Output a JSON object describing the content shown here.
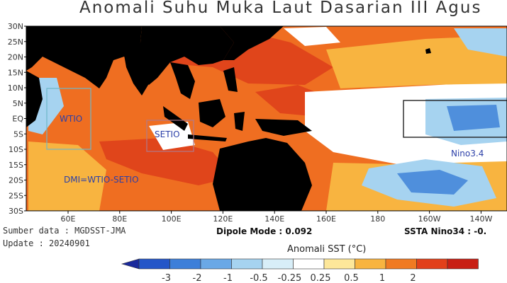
{
  "title": "Anomali Suhu Muka Laut Dasarian III Agus",
  "lat_labels": [
    "30N",
    "25N",
    "20N",
    "15N",
    "10N",
    "5N",
    "EQ",
    "5S",
    "10S",
    "15S",
    "20S",
    "25S",
    "30S"
  ],
  "lon_labels": [
    "60E",
    "80E",
    "100E",
    "120E",
    "140E",
    "160E",
    "180",
    "160W",
    "140W"
  ],
  "regions": {
    "wtio": "WTIO",
    "setio": "SETIO",
    "dmi": "DMI=WTIO-SETIO",
    "nino34": "Nino3.4"
  },
  "source": "Sumber data : MGDSST-JMA",
  "update": "Update : 20240901",
  "dipole": "Dipole Mode : 0.092",
  "ssta": "SSTA Nino34 : -0.",
  "colorbar": {
    "title": "Anomali SST (°C)",
    "ticks": [
      "-3",
      "-2",
      "-1",
      "-0.5",
      "-0.25",
      "0.25",
      "0.5",
      "1",
      "2"
    ],
    "colors": [
      "#1a2a9c",
      "#2456c8",
      "#3d7fd9",
      "#6aa8e6",
      "#a6d3f0",
      "#d8eef8",
      "#ffffff",
      "#fde79a",
      "#f8b440",
      "#f07a22",
      "#e2401a",
      "#c81f14"
    ]
  },
  "colors": {
    "land": "#000000",
    "warm_deep": "#e0451b",
    "warm": "#f07a22",
    "warm_light": "#f8b440",
    "neutral": "#ffffff",
    "cool_light": "#a6d3f0",
    "cool": "#4f8fdc",
    "box_wtio": "#6fb8c8",
    "box_setio": "#b07a8a",
    "box_nino": "#222222",
    "region_text": "#2b3fa8"
  }
}
